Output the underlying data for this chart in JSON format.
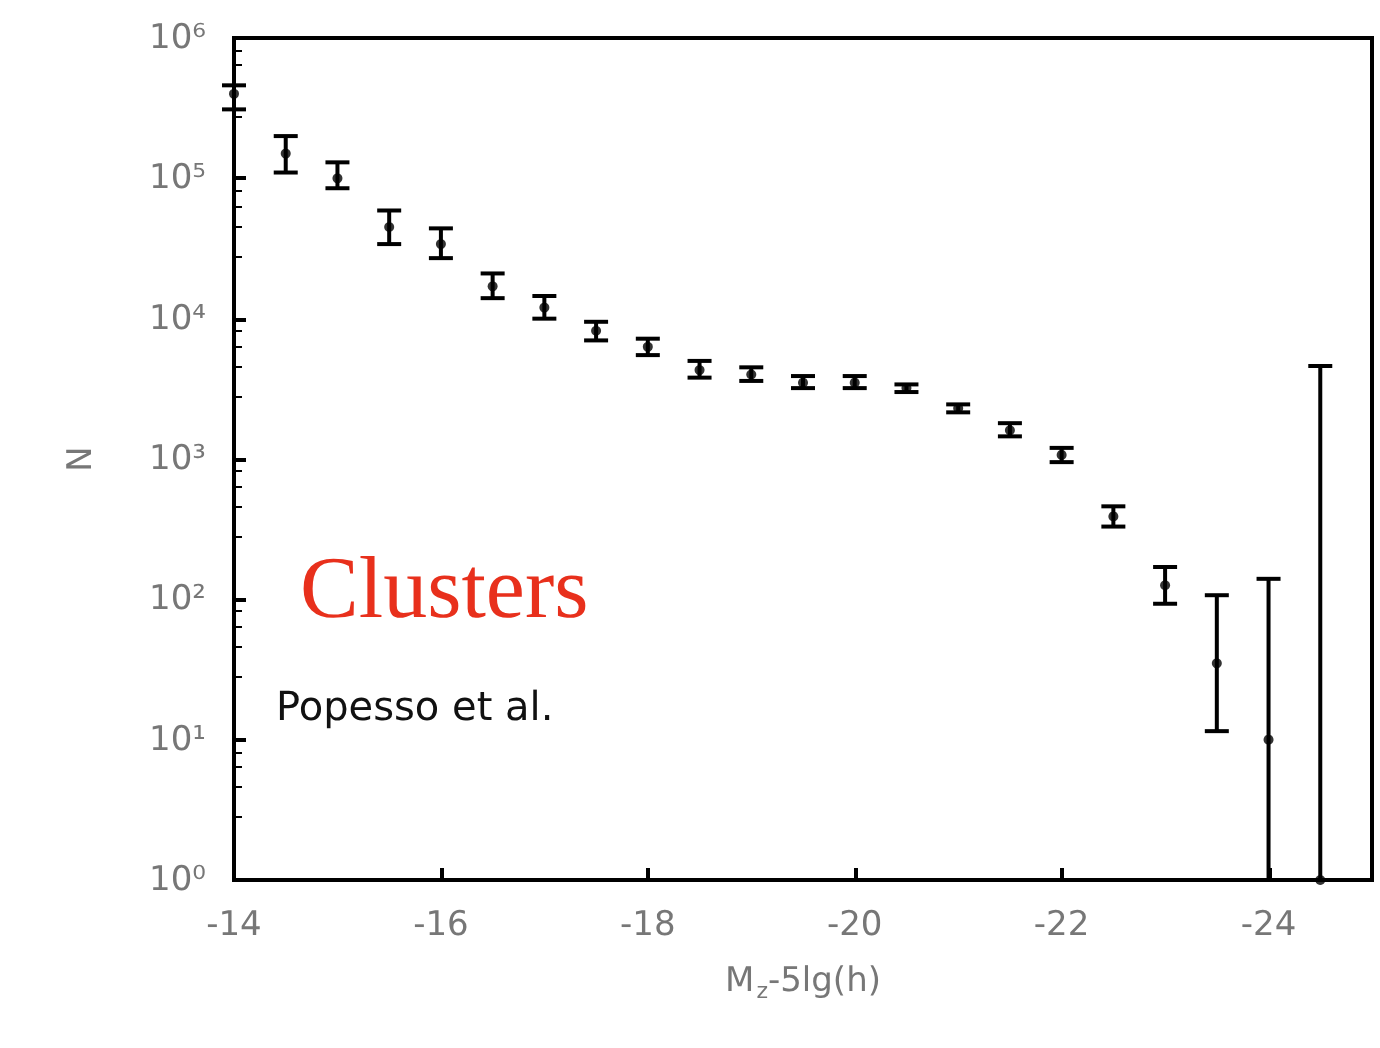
{
  "chart_data": {
    "type": "scatter",
    "xlabel": "M$_{z}$-5lg(h)",
    "ylabel": "N",
    "annotations": [
      "Clusters",
      "Popesso et al."
    ],
    "x": [
      -14,
      -14.5,
      -15,
      -15.5,
      -16,
      -16.5,
      -17,
      -17.5,
      -18,
      -18.5,
      -19,
      -19.5,
      -20,
      -20.5,
      -21,
      -21.5,
      -22,
      -22.5,
      -23,
      -23.5,
      -24,
      -24.5
    ],
    "values": [
      400000,
      150000,
      100000,
      45000,
      34000,
      17000,
      12000,
      8200,
      6300,
      4300,
      4000,
      3500,
      3500,
      3200,
      2300,
      1600,
      1070,
      390,
      126,
      35,
      10,
      1
    ],
    "errors": [
      [
        310000,
        460000
      ],
      [
        110000,
        200000
      ],
      [
        85000,
        130000
      ],
      [
        34000,
        59000
      ],
      [
        27000,
        44000
      ],
      [
        14000,
        21000
      ],
      [
        10000,
        14500
      ],
      [
        7000,
        9500
      ],
      [
        5500,
        7200
      ],
      [
        3800,
        5000
      ],
      [
        3600,
        4500
      ],
      [
        3200,
        3900
      ],
      [
        3200,
        3900
      ],
      [
        3000,
        3400
      ],
      [
        2150,
        2450
      ],
      [
        1450,
        1800
      ],
      [
        950,
        1200
      ],
      [
        330,
        460
      ],
      [
        93,
        170
      ],
      [
        11.5,
        107
      ],
      [
        1,
        140
      ],
      [
        1,
        4600
      ]
    ],
    "color": "#000000",
    "marker": "circle",
    "log": "y",
    "grid": false,
    "xlim": [
      -14,
      -25
    ],
    "xticks": [
      -14,
      -16,
      -18,
      -20,
      -22,
      -24
    ],
    "ylim": [
      1,
      1000000
    ],
    "yticks": [
      {
        "value": 1,
        "label": "10⁰"
      },
      {
        "value": 10,
        "label": "10¹"
      },
      {
        "value": 100,
        "label": "10²"
      },
      {
        "value": 1000,
        "label": "10³"
      },
      {
        "value": 10000,
        "label": "10⁴"
      },
      {
        "value": 100000,
        "label": "10⁵"
      },
      {
        "value": 1000000,
        "label": "10⁶"
      }
    ]
  }
}
